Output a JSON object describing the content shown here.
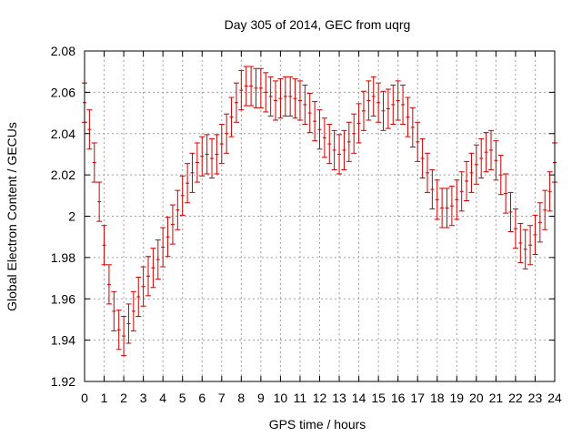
{
  "chart_data": {
    "type": "scatter",
    "title": "Day 305 of 2014, GEC from uqrg",
    "xlabel": "GPS time / hours",
    "ylabel": "Global Electron Content / GECUs",
    "xlim": [
      0,
      24
    ],
    "ylim": [
      1.92,
      2.08
    ],
    "xticks": [
      0,
      1,
      2,
      3,
      4,
      5,
      6,
      7,
      8,
      9,
      10,
      11,
      12,
      13,
      14,
      15,
      16,
      17,
      18,
      19,
      20,
      21,
      22,
      23,
      24
    ],
    "yticks": [
      1.92,
      1.94,
      1.96,
      1.98,
      2,
      2.02,
      2.04,
      2.06,
      2.08
    ],
    "ytick_labels": [
      "1.92",
      "1.94",
      "1.96",
      "1.98",
      "2",
      "2.02",
      "2.04",
      "2.06",
      "2.08"
    ],
    "grid": true,
    "legend": "none",
    "colors": {
      "series": "#cc0000",
      "grid": "#a0a0a0",
      "axis": "#000000"
    },
    "error_half_width": 0.0095,
    "points": [
      {
        "x": 0.0,
        "y": 2.055
      },
      {
        "x": 0.25,
        "y": 2.042
      },
      {
        "x": 0.5,
        "y": 2.026
      },
      {
        "x": 0.75,
        "y": 2.007
      },
      {
        "x": 1.0,
        "y": 1.986
      },
      {
        "x": 1.25,
        "y": 1.967
      },
      {
        "x": 1.5,
        "y": 1.954
      },
      {
        "x": 1.75,
        "y": 1.945
      },
      {
        "x": 2.0,
        "y": 1.942
      },
      {
        "x": 2.25,
        "y": 1.948
      },
      {
        "x": 2.5,
        "y": 1.954
      },
      {
        "x": 2.75,
        "y": 1.961
      },
      {
        "x": 3.0,
        "y": 1.966
      },
      {
        "x": 3.25,
        "y": 1.971
      },
      {
        "x": 3.5,
        "y": 1.975
      },
      {
        "x": 3.75,
        "y": 1.979
      },
      {
        "x": 4.0,
        "y": 1.985
      },
      {
        "x": 4.25,
        "y": 1.99
      },
      {
        "x": 4.5,
        "y": 1.996
      },
      {
        "x": 4.75,
        "y": 2.003
      },
      {
        "x": 5.0,
        "y": 2.01
      },
      {
        "x": 5.25,
        "y": 2.016
      },
      {
        "x": 5.5,
        "y": 2.021
      },
      {
        "x": 5.75,
        "y": 2.026
      },
      {
        "x": 6.0,
        "y": 2.029
      },
      {
        "x": 6.25,
        "y": 2.03
      },
      {
        "x": 6.5,
        "y": 2.028
      },
      {
        "x": 6.75,
        "y": 2.03
      },
      {
        "x": 7.0,
        "y": 2.035
      },
      {
        "x": 7.25,
        "y": 2.04
      },
      {
        "x": 7.5,
        "y": 2.048
      },
      {
        "x": 7.75,
        "y": 2.055
      },
      {
        "x": 8.0,
        "y": 2.061
      },
      {
        "x": 8.25,
        "y": 2.063
      },
      {
        "x": 8.5,
        "y": 2.063
      },
      {
        "x": 8.75,
        "y": 2.062
      },
      {
        "x": 9.0,
        "y": 2.062
      },
      {
        "x": 9.25,
        "y": 2.06
      },
      {
        "x": 9.5,
        "y": 2.058
      },
      {
        "x": 9.75,
        "y": 2.056
      },
      {
        "x": 10.0,
        "y": 2.057
      },
      {
        "x": 10.25,
        "y": 2.058
      },
      {
        "x": 10.5,
        "y": 2.058
      },
      {
        "x": 10.75,
        "y": 2.057
      },
      {
        "x": 11.0,
        "y": 2.056
      },
      {
        "x": 11.25,
        "y": 2.054
      },
      {
        "x": 11.5,
        "y": 2.05
      },
      {
        "x": 11.75,
        "y": 2.046
      },
      {
        "x": 12.0,
        "y": 2.042
      },
      {
        "x": 12.25,
        "y": 2.038
      },
      {
        "x": 12.5,
        "y": 2.035
      },
      {
        "x": 12.75,
        "y": 2.032
      },
      {
        "x": 13.0,
        "y": 2.03
      },
      {
        "x": 13.25,
        "y": 2.032
      },
      {
        "x": 13.5,
        "y": 2.036
      },
      {
        "x": 13.75,
        "y": 2.04
      },
      {
        "x": 14.0,
        "y": 2.045
      },
      {
        "x": 14.25,
        "y": 2.051
      },
      {
        "x": 14.5,
        "y": 2.056
      },
      {
        "x": 14.75,
        "y": 2.058
      },
      {
        "x": 15.0,
        "y": 2.055
      },
      {
        "x": 15.25,
        "y": 2.051
      },
      {
        "x": 15.5,
        "y": 2.052
      },
      {
        "x": 15.75,
        "y": 2.054
      },
      {
        "x": 16.0,
        "y": 2.056
      },
      {
        "x": 16.25,
        "y": 2.054
      },
      {
        "x": 16.5,
        "y": 2.048
      },
      {
        "x": 16.75,
        "y": 2.043
      },
      {
        "x": 17.0,
        "y": 2.036
      },
      {
        "x": 17.25,
        "y": 2.028
      },
      {
        "x": 17.5,
        "y": 2.021
      },
      {
        "x": 17.75,
        "y": 2.013
      },
      {
        "x": 18.0,
        "y": 2.008
      },
      {
        "x": 18.25,
        "y": 2.004
      },
      {
        "x": 18.5,
        "y": 2.004
      },
      {
        "x": 18.75,
        "y": 2.005
      },
      {
        "x": 19.0,
        "y": 2.008
      },
      {
        "x": 19.25,
        "y": 2.012
      },
      {
        "x": 19.5,
        "y": 2.017
      },
      {
        "x": 19.75,
        "y": 2.021
      },
      {
        "x": 20.0,
        "y": 2.025
      },
      {
        "x": 20.25,
        "y": 2.028
      },
      {
        "x": 20.5,
        "y": 2.031
      },
      {
        "x": 20.75,
        "y": 2.032
      },
      {
        "x": 21.0,
        "y": 2.027
      },
      {
        "x": 21.25,
        "y": 2.02
      },
      {
        "x": 21.5,
        "y": 2.011
      },
      {
        "x": 21.75,
        "y": 2.002
      },
      {
        "x": 22.0,
        "y": 1.994
      },
      {
        "x": 22.25,
        "y": 1.987
      },
      {
        "x": 22.5,
        "y": 1.984
      },
      {
        "x": 22.75,
        "y": 1.986
      },
      {
        "x": 23.0,
        "y": 1.991
      },
      {
        "x": 23.25,
        "y": 1.997
      },
      {
        "x": 23.5,
        "y": 2.003
      },
      {
        "x": 23.75,
        "y": 2.012
      },
      {
        "x": 24.0,
        "y": 2.026
      }
    ]
  }
}
